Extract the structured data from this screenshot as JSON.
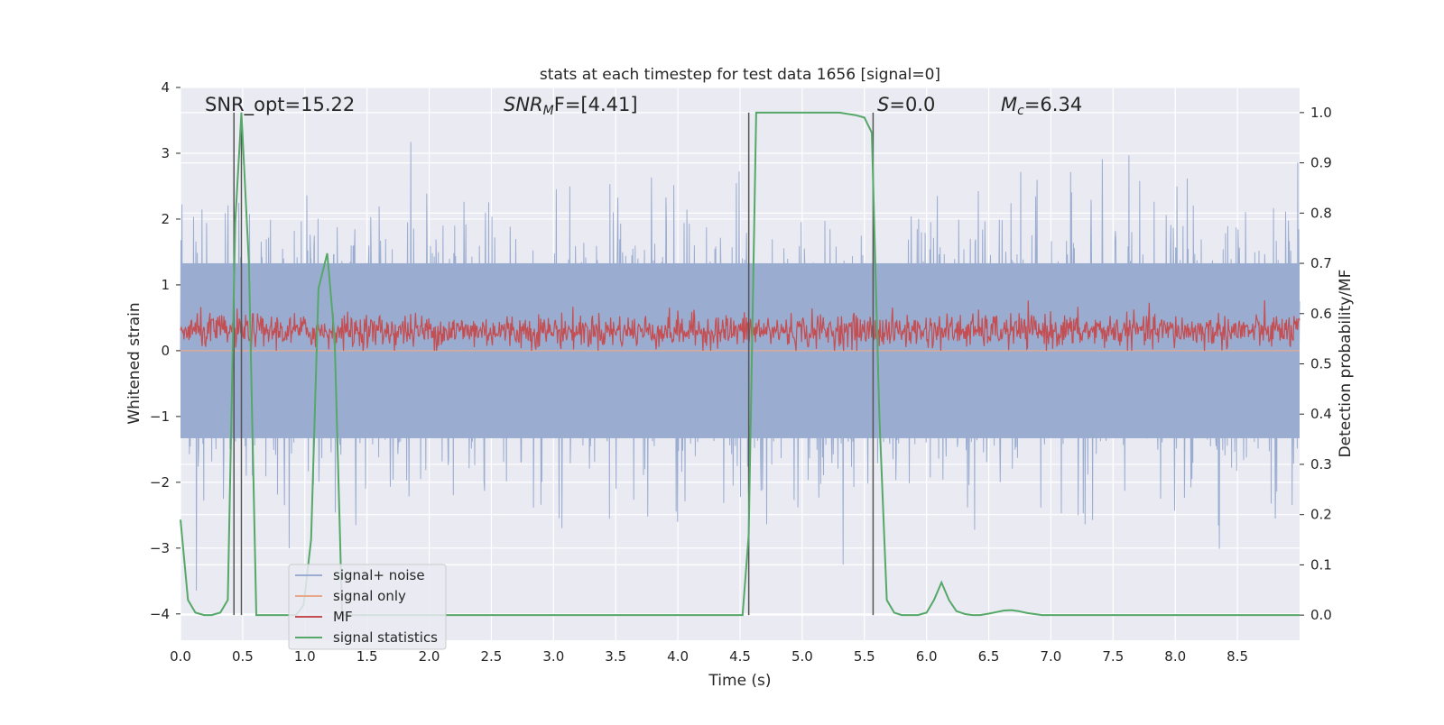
{
  "chart_data": {
    "type": "line",
    "title": "stats at each timestep for test data 1656 [signal=0]",
    "xlabel": "Time (s)",
    "ylabel": "Whitened strain",
    "y2label": "Detection probability/MF",
    "xlim": [
      0.0,
      9.0
    ],
    "ylim": [
      -4.4,
      4.0
    ],
    "y2lim": [
      -0.05,
      1.05
    ],
    "xticks": [
      "0.0",
      "0.5",
      "1.0",
      "1.5",
      "2.0",
      "2.5",
      "3.0",
      "3.5",
      "4.0",
      "4.5",
      "5.0",
      "5.5",
      "6.0",
      "6.5",
      "7.0",
      "7.5",
      "8.0",
      "8.5"
    ],
    "yticks": [
      "4",
      "3",
      "2",
      "1",
      "0",
      "−1",
      "−2",
      "−3",
      "−4"
    ],
    "y2ticks": [
      "1.0",
      "0.9",
      "0.8",
      "0.7",
      "0.6",
      "0.5",
      "0.4",
      "0.3",
      "0.2",
      "0.1",
      "0.0"
    ],
    "grid": true,
    "legend_placement": "lower-left",
    "annotations": {
      "snr_opt": "SNR_opt=15.22",
      "snr_mf_base": "SNR",
      "snr_mf_sub": "M",
      "snr_mf_rest": "F=[4.41]",
      "s_var": "S",
      "s_rest": "=0.0",
      "mc_var": "M",
      "mc_sub": "c",
      "mc_rest": "=6.34"
    },
    "vertical_lines_x": [
      0.43,
      0.49,
      4.57,
      5.57
    ],
    "series": [
      {
        "name": "signal+ noise",
        "color": "#9aadd0",
        "axis": "left",
        "noise_amplitude_sigma": 1.0,
        "band_1sigma": [
          -1.33,
          1.33
        ]
      },
      {
        "name": "signal only",
        "color": "#e8a98b",
        "axis": "left",
        "values_description_constant": 0.0
      },
      {
        "name": "MF",
        "color": "#c44e52",
        "axis": "left",
        "mean": 0.3,
        "range": [
          0.0,
          1.0
        ]
      },
      {
        "name": "signal statistics",
        "color": "#55a868",
        "axis": "right",
        "x": [
          0.0,
          0.06,
          0.12,
          0.19,
          0.25,
          0.32,
          0.38,
          0.44,
          0.49,
          0.55,
          0.61,
          0.68,
          0.74,
          0.8,
          0.87,
          0.93,
          0.99,
          1.05,
          1.11,
          1.18,
          1.24,
          1.3,
          1.37,
          1.43,
          1.5,
          2.0,
          2.5,
          3.0,
          3.5,
          4.0,
          4.35,
          4.52,
          4.57,
          4.63,
          4.69,
          5.0,
          5.3,
          5.43,
          5.5,
          5.56,
          5.62,
          5.68,
          5.74,
          5.8,
          5.87,
          5.93,
          6.0,
          6.06,
          6.12,
          6.18,
          6.24,
          6.31,
          6.37,
          6.43,
          6.5,
          6.56,
          6.62,
          6.68,
          6.74,
          6.81,
          6.87,
          6.93,
          7.0,
          8.0,
          9.0
        ],
        "values": [
          0.19,
          0.03,
          0.005,
          0.0,
          0.0,
          0.005,
          0.03,
          0.78,
          1.0,
          0.7,
          0.0,
          0.0,
          0.0,
          0.0,
          0.0,
          0.0,
          0.02,
          0.15,
          0.65,
          0.72,
          0.55,
          0.0,
          0.0,
          0.0,
          0.0,
          0.0,
          0.0,
          0.0,
          0.0,
          0.0,
          0.0,
          0.0,
          0.16,
          1.0,
          1.0,
          1.0,
          1.0,
          0.995,
          0.99,
          0.96,
          0.4,
          0.03,
          0.005,
          0.0,
          0.0,
          0.0,
          0.005,
          0.03,
          0.065,
          0.03,
          0.008,
          0.002,
          0.0,
          0.0,
          0.003,
          0.006,
          0.009,
          0.01,
          0.008,
          0.004,
          0.002,
          0.0,
          0.0,
          0.0,
          0.0
        ]
      }
    ]
  }
}
